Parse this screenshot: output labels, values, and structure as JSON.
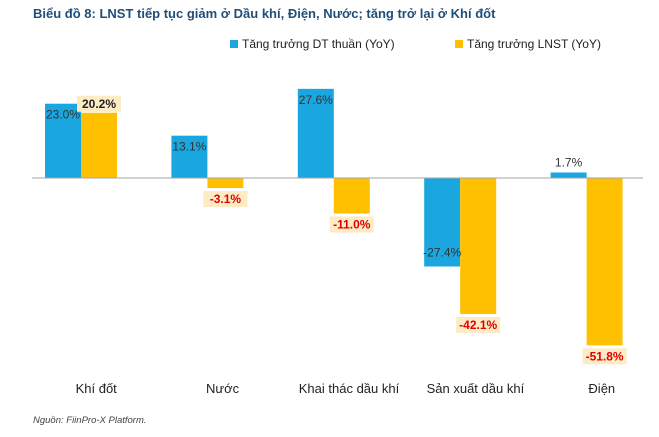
{
  "title": "Biểu đồ 8: LNST tiếp tục giảm ở Dầu khí, Điện, Nước; tăng trở lại ở Khí đốt",
  "source": "Nguồn: FiinPro-X Platform.",
  "colors": {
    "revenue": "#1aa7e0",
    "profit": "#ffc000",
    "positive_profit_label_bg": "#fcebc4",
    "negative_profit_label_bg": "#fcebc4",
    "negative_profit_label_text": "#e00000",
    "axis": "#a6a6a6"
  },
  "chart_data": {
    "type": "bar",
    "title": "Biểu đồ 8: LNST tiếp tục giảm ở Dầu khí, Điện, Nước; tăng trở lại ở Khí đốt",
    "categories": [
      "Khí đốt",
      "Nước",
      "Khai thác dầu khí",
      "Sản xuất dầu khí",
      "Điện"
    ],
    "series": [
      {
        "name": "Tăng trưởng DT thuần (YoY)",
        "values": [
          23.0,
          13.1,
          27.6,
          -27.4,
          1.7
        ],
        "labels": [
          "23.0%",
          "13.1%",
          "27.6%",
          "-27.4%",
          "1.7%"
        ]
      },
      {
        "name": "Tăng trưởng LNST (YoY)",
        "values": [
          20.2,
          -3.1,
          -11.0,
          -42.1,
          -51.8
        ],
        "labels": [
          "20.2%",
          "-3.1%",
          "-11.0%",
          "-42.1%",
          "-51.8%"
        ]
      }
    ],
    "ylim": [
      -60,
      30
    ],
    "xlabel": "",
    "ylabel": "",
    "grid": false,
    "legend_position": "top-right"
  }
}
